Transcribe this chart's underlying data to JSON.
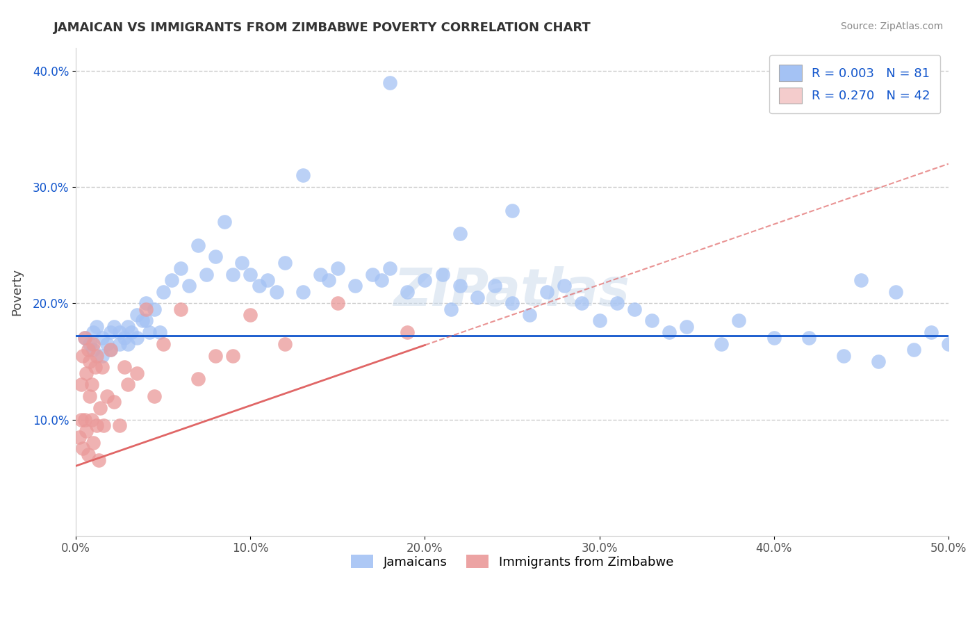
{
  "title": "JAMAICAN VS IMMIGRANTS FROM ZIMBABWE POVERTY CORRELATION CHART",
  "source": "Source: ZipAtlas.com",
  "ylabel": "Poverty",
  "xlim": [
    0.0,
    0.5
  ],
  "ylim": [
    0.0,
    0.42
  ],
  "xtick_labels": [
    "0.0%",
    "10.0%",
    "20.0%",
    "30.0%",
    "40.0%",
    "50.0%"
  ],
  "xtick_vals": [
    0.0,
    0.1,
    0.2,
    0.3,
    0.4,
    0.5
  ],
  "ytick_labels": [
    "10.0%",
    "20.0%",
    "30.0%",
    "40.0%"
  ],
  "ytick_vals": [
    0.1,
    0.2,
    0.3,
    0.4
  ],
  "blue_color": "#a4c2f4",
  "pink_color": "#ea9999",
  "blue_line_color": "#1155cc",
  "pink_line_color": "#e06666",
  "legend_blue_face": "#a4c2f4",
  "legend_pink_face": "#f4cccc",
  "R_blue": 0.003,
  "N_blue": 81,
  "R_pink": 0.27,
  "N_pink": 42,
  "legend_label1": "Jamaicans",
  "legend_label2": "Immigrants from Zimbabwe",
  "watermark": "ZIPatlas",
  "blue_scatter_x": [
    0.005,
    0.008,
    0.01,
    0.01,
    0.012,
    0.015,
    0.015,
    0.018,
    0.02,
    0.02,
    0.022,
    0.025,
    0.025,
    0.028,
    0.03,
    0.03,
    0.032,
    0.035,
    0.035,
    0.038,
    0.04,
    0.04,
    0.042,
    0.045,
    0.048,
    0.05,
    0.055,
    0.06,
    0.065,
    0.07,
    0.075,
    0.08,
    0.085,
    0.09,
    0.095,
    0.1,
    0.105,
    0.11,
    0.115,
    0.12,
    0.13,
    0.14,
    0.145,
    0.15,
    0.16,
    0.17,
    0.175,
    0.18,
    0.19,
    0.2,
    0.21,
    0.215,
    0.22,
    0.23,
    0.24,
    0.25,
    0.26,
    0.27,
    0.28,
    0.29,
    0.3,
    0.31,
    0.32,
    0.33,
    0.34,
    0.35,
    0.37,
    0.38,
    0.4,
    0.42,
    0.44,
    0.45,
    0.46,
    0.47,
    0.48,
    0.49,
    0.5,
    0.22,
    0.25,
    0.13,
    0.18
  ],
  "blue_scatter_y": [
    0.17,
    0.165,
    0.175,
    0.16,
    0.18,
    0.17,
    0.155,
    0.165,
    0.175,
    0.16,
    0.18,
    0.175,
    0.165,
    0.17,
    0.18,
    0.165,
    0.175,
    0.19,
    0.17,
    0.185,
    0.2,
    0.185,
    0.175,
    0.195,
    0.175,
    0.21,
    0.22,
    0.23,
    0.215,
    0.25,
    0.225,
    0.24,
    0.27,
    0.225,
    0.235,
    0.225,
    0.215,
    0.22,
    0.21,
    0.235,
    0.21,
    0.225,
    0.22,
    0.23,
    0.215,
    0.225,
    0.22,
    0.23,
    0.21,
    0.22,
    0.225,
    0.195,
    0.215,
    0.205,
    0.215,
    0.2,
    0.19,
    0.21,
    0.215,
    0.2,
    0.185,
    0.2,
    0.195,
    0.185,
    0.175,
    0.18,
    0.165,
    0.185,
    0.17,
    0.17,
    0.155,
    0.22,
    0.15,
    0.21,
    0.16,
    0.175,
    0.165,
    0.26,
    0.28,
    0.31,
    0.39
  ],
  "pink_scatter_x": [
    0.002,
    0.003,
    0.003,
    0.004,
    0.004,
    0.005,
    0.005,
    0.006,
    0.006,
    0.007,
    0.007,
    0.008,
    0.008,
    0.009,
    0.009,
    0.01,
    0.01,
    0.011,
    0.012,
    0.012,
    0.013,
    0.014,
    0.015,
    0.016,
    0.018,
    0.02,
    0.022,
    0.025,
    0.028,
    0.03,
    0.035,
    0.04,
    0.045,
    0.05,
    0.06,
    0.07,
    0.08,
    0.09,
    0.1,
    0.12,
    0.15,
    0.19
  ],
  "pink_scatter_y": [
    0.085,
    0.13,
    0.1,
    0.155,
    0.075,
    0.17,
    0.1,
    0.14,
    0.09,
    0.16,
    0.07,
    0.15,
    0.12,
    0.1,
    0.13,
    0.165,
    0.08,
    0.145,
    0.095,
    0.155,
    0.065,
    0.11,
    0.145,
    0.095,
    0.12,
    0.16,
    0.115,
    0.095,
    0.145,
    0.13,
    0.14,
    0.195,
    0.12,
    0.165,
    0.195,
    0.135,
    0.155,
    0.155,
    0.19,
    0.165,
    0.2,
    0.175
  ],
  "blue_line_intercept": 0.172,
  "blue_line_slope": 0.0,
  "pink_line_intercept": 0.06,
  "pink_line_slope": 0.52
}
